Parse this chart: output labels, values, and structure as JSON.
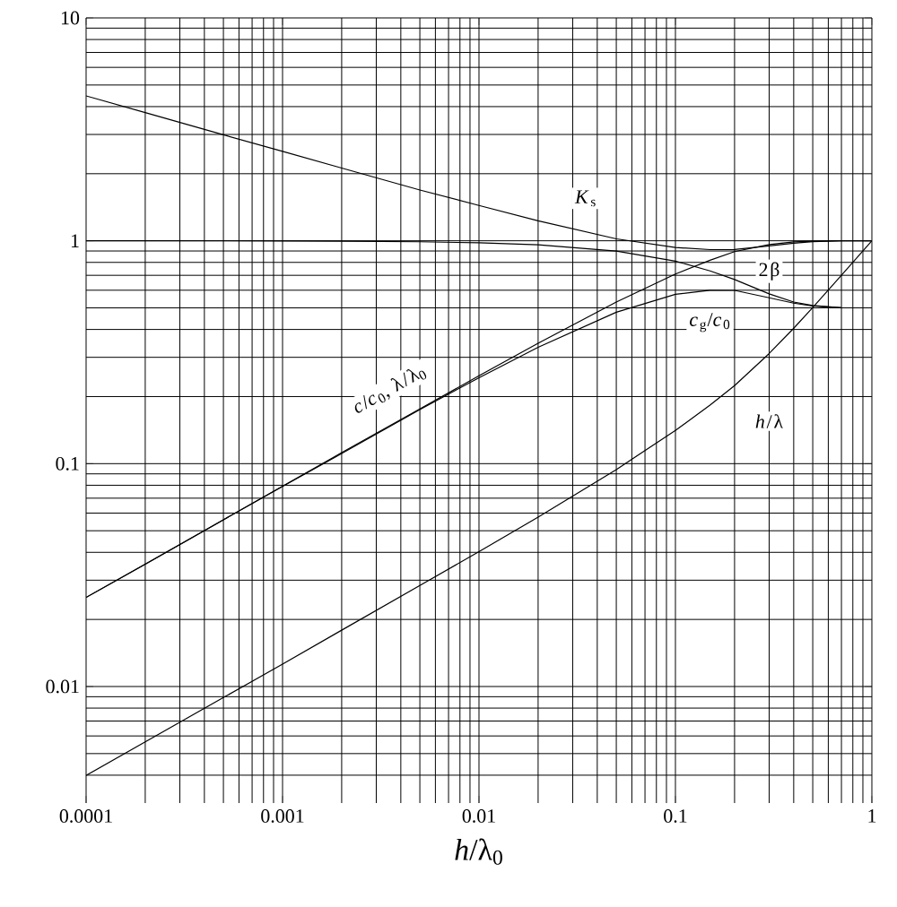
{
  "chart_data": {
    "type": "line",
    "xlabel": "*h*/λ$_{0}$",
    "log": "xy",
    "grid": true,
    "legend": false,
    "marker": "none",
    "line_style": "solid",
    "xlim": [
      0.0001,
      1
    ],
    "ylim": [
      0.003,
      10
    ],
    "xticks": [
      0.0001,
      0.001,
      0.01,
      0.1,
      1
    ],
    "yticks": [
      0.01,
      0.1,
      1,
      10
    ],
    "x": [
      0.0001,
      0.0002,
      0.0005,
      0.001,
      0.002,
      0.005,
      0.01,
      0.02,
      0.05,
      0.1,
      0.15,
      0.2,
      0.3,
      0.4,
      0.5,
      0.7,
      1
    ],
    "series": [
      {
        "name": "*K*$_{s}$",
        "color": "#000000",
        "values": [
          4.47,
          3.76,
          2.99,
          2.52,
          2.12,
          1.69,
          1.44,
          1.23,
          1.02,
          0.933,
          0.913,
          0.914,
          0.949,
          0.976,
          0.991,
          0.999,
          1.0
        ]
      },
      {
        "name": "2β",
        "color": "#000000",
        "values": [
          1.0,
          1.0,
          0.999,
          0.998,
          0.996,
          0.99,
          0.979,
          0.959,
          0.9,
          0.81,
          0.733,
          0.67,
          0.578,
          0.531,
          0.512,
          0.501,
          0.5
        ]
      },
      {
        "name": "*c*$_{g}$/*c*$_{0}$",
        "color": "#000000",
        "values": [
          0.0251,
          0.0354,
          0.056,
          0.079,
          0.111,
          0.175,
          0.243,
          0.333,
          0.478,
          0.575,
          0.6,
          0.599,
          0.555,
          0.525,
          0.51,
          0.501,
          0.5
        ]
      },
      {
        "name": "*c*/*c*$_{0}$, λ/λ$_{0}$",
        "color": "#000000",
        "values": [
          0.0251,
          0.0354,
          0.056,
          0.0792,
          0.112,
          0.176,
          0.248,
          0.347,
          0.531,
          0.709,
          0.818,
          0.894,
          0.961,
          0.988,
          0.996,
          1.0,
          1.0
        ]
      },
      {
        "name": "*h*/λ",
        "color": "#000000",
        "values": [
          0.00399,
          0.00564,
          0.00892,
          0.0126,
          0.0179,
          0.0284,
          0.0403,
          0.0576,
          0.0941,
          0.141,
          0.183,
          0.224,
          0.312,
          0.405,
          0.502,
          0.7,
          1.0
        ]
      }
    ]
  }
}
